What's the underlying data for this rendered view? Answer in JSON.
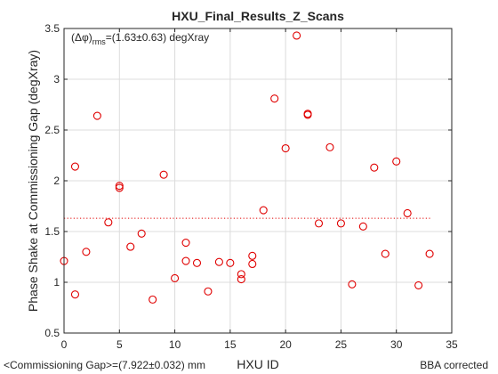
{
  "chart_data": {
    "type": "scatter",
    "title": "HXU_Final_Results_Z_Scans",
    "xlabel": "HXU ID",
    "ylabel": "Phase Shake at Commissioning Gap (degXray)",
    "xlim": [
      0,
      35
    ],
    "ylim": [
      0.5,
      3.5
    ],
    "xticks": [
      "0",
      "5",
      "10",
      "15",
      "20",
      "25",
      "30",
      "35"
    ],
    "yticks": [
      "0.5",
      "1",
      "1.5",
      "2",
      "2.5",
      "3",
      "3.5"
    ],
    "grid": true,
    "annotation": {
      "prefix": "(Δφ)",
      "subscript": "rms",
      "suffix": "=(1.63±0.63) degXray"
    },
    "mean": 1.63,
    "bottom_left_text": "<Commissioning Gap>=(7.922±0.032) mm",
    "bottom_right_text": "BBA corrected",
    "marker_color": "#e00000",
    "points": [
      {
        "x": 0,
        "y": 1.21
      },
      {
        "x": 1,
        "y": 2.14
      },
      {
        "x": 1,
        "y": 0.88
      },
      {
        "x": 2,
        "y": 1.3
      },
      {
        "x": 3,
        "y": 2.64
      },
      {
        "x": 4,
        "y": 1.59
      },
      {
        "x": 5,
        "y": 1.95
      },
      {
        "x": 5,
        "y": 1.93
      },
      {
        "x": 6,
        "y": 1.35
      },
      {
        "x": 7,
        "y": 1.48
      },
      {
        "x": 8,
        "y": 0.83
      },
      {
        "x": 9,
        "y": 2.06
      },
      {
        "x": 10,
        "y": 1.04
      },
      {
        "x": 11,
        "y": 1.39
      },
      {
        "x": 11,
        "y": 1.21
      },
      {
        "x": 12,
        "y": 1.19
      },
      {
        "x": 13,
        "y": 0.91
      },
      {
        "x": 14,
        "y": 1.2
      },
      {
        "x": 15,
        "y": 1.19
      },
      {
        "x": 16,
        "y": 1.08
      },
      {
        "x": 16,
        "y": 1.03
      },
      {
        "x": 17,
        "y": 1.26
      },
      {
        "x": 17,
        "y": 1.18
      },
      {
        "x": 18,
        "y": 1.71
      },
      {
        "x": 19,
        "y": 2.81
      },
      {
        "x": 20,
        "y": 2.32
      },
      {
        "x": 21,
        "y": 3.43
      },
      {
        "x": 22,
        "y": 2.66
      },
      {
        "x": 22,
        "y": 2.65
      },
      {
        "x": 23,
        "y": 1.58
      },
      {
        "x": 24,
        "y": 2.33
      },
      {
        "x": 25,
        "y": 1.58
      },
      {
        "x": 26,
        "y": 0.98
      },
      {
        "x": 27,
        "y": 1.55
      },
      {
        "x": 28,
        "y": 2.13
      },
      {
        "x": 29,
        "y": 1.28
      },
      {
        "x": 30,
        "y": 2.19
      },
      {
        "x": 31,
        "y": 1.68
      },
      {
        "x": 32,
        "y": 0.97
      },
      {
        "x": 33,
        "y": 1.28
      }
    ]
  }
}
